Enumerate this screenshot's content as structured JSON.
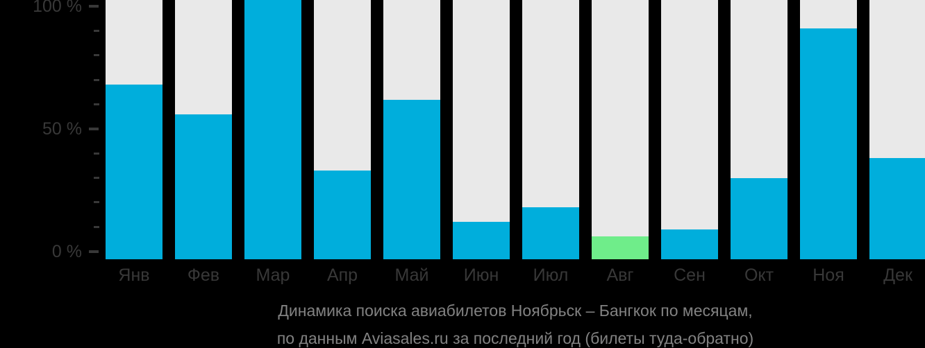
{
  "chart_data": {
    "type": "bar",
    "title": "Динамика поиска авиабилетов Ноябрьск – Бангкок по месяцам,",
    "subtitle": "по данным Aviasales.ru за последний год (билеты туда-обратно)",
    "categories": [
      "Янв",
      "Фев",
      "Мар",
      "Апр",
      "Май",
      "Июн",
      "Июл",
      "Авг",
      "Сен",
      "Окт",
      "Ноя",
      "Дек"
    ],
    "values": [
      68,
      56,
      100,
      33,
      62,
      12,
      18,
      6,
      9,
      30,
      91,
      38
    ],
    "unit": "%",
    "ylim": [
      0,
      100
    ],
    "y_axis": {
      "major_step": 50,
      "minor_step": 10,
      "labels": [
        {
          "text": "100 %",
          "value": 100
        },
        {
          "text": "50 %",
          "value": 50
        },
        {
          "text": "0 %",
          "value": 0
        }
      ]
    },
    "highlight_index": 7,
    "highlight_category": "Авг",
    "legend": false,
    "grid": false,
    "colors": {
      "background": "#000000",
      "track": "#E9E9E9",
      "bar": "#00AEDC",
      "highlight": "#6FED8A",
      "axis_label": "#383838",
      "caption": "#828282"
    }
  }
}
